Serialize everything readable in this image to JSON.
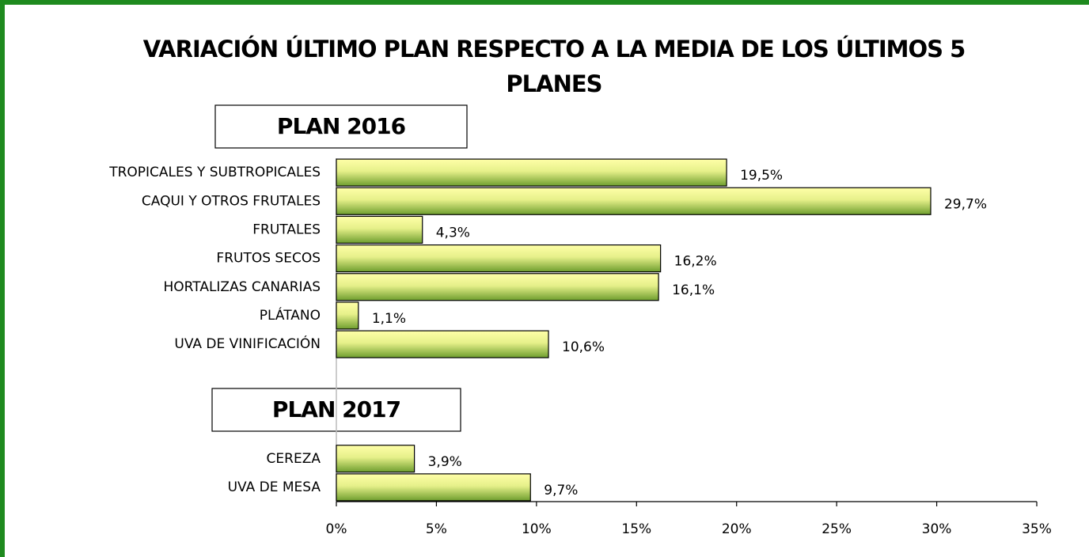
{
  "chart_data": {
    "type": "barh",
    "title": "VARIACIÓN ÚLTIMO PLAN RESPECTO A LA MEDIA DE LOS ÚLTIMOS 5 PLANES",
    "annotations": [
      "PLAN 2016",
      "PLAN 2017"
    ],
    "categories": [
      "TROPICALES Y SUBTROPICALES",
      "CAQUI Y OTROS FRUTALES",
      "FRUTALES",
      "FRUTOS SECOS",
      "HORTALIZAS CANARIAS",
      "PLÁTANO",
      "UVA DE VINIFICACIÓN",
      null,
      null,
      null,
      "CEREZA",
      "UVA DE MESA"
    ],
    "values": [
      19.5,
      29.7,
      4.3,
      16.2,
      16.1,
      1.1,
      10.6,
      null,
      null,
      null,
      3.9,
      9.7
    ],
    "value_labels": [
      "19,5%",
      "29,7%",
      "4,3%",
      "16,2%",
      "16,1%",
      "1,1%",
      "10,6%",
      null,
      null,
      null,
      "3,9%",
      "9,7%"
    ],
    "color": "#6e9e2e",
    "xlim": [
      0,
      35
    ],
    "xticks": [
      {
        "value": 0,
        "label": "0%"
      },
      {
        "value": 5,
        "label": "5%"
      },
      {
        "value": 10,
        "label": "10%"
      },
      {
        "value": 15,
        "label": "15%"
      },
      {
        "value": 20,
        "label": "20%"
      },
      {
        "value": 25,
        "label": "25%"
      },
      {
        "value": 30,
        "label": "30%"
      },
      {
        "value": 35,
        "label": "35%"
      }
    ],
    "grid": false
  }
}
